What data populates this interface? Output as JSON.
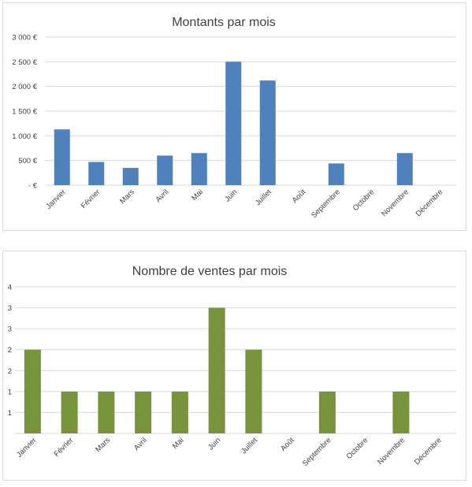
{
  "chart_data": [
    {
      "type": "bar",
      "title": "Montants par mois",
      "categories": [
        "Janvier",
        "Février",
        "Mars",
        "Avril",
        "Mai",
        "Juin",
        "Juillet",
        "Août",
        "Septembre",
        "Octobre",
        "Novembre",
        "Décembre"
      ],
      "values": [
        1130,
        470,
        350,
        600,
        650,
        2500,
        2120,
        0,
        440,
        0,
        650,
        0
      ],
      "ylim": [
        0,
        3000
      ],
      "yticks": [
        0,
        500,
        1000,
        1500,
        2000,
        2500,
        3000
      ],
      "ytick_labels": [
        "- €",
        "500 €",
        "1 000 €",
        "1 500 €",
        "2 000 €",
        "2 500 €",
        "3 000 €"
      ],
      "color": "#4f81bd",
      "grid": true
    },
    {
      "type": "bar",
      "title": "Nombre de ventes par mois",
      "categories": [
        "Janvier",
        "Février",
        "Mars",
        "Avril",
        "Mai",
        "Juin",
        "Juillet",
        "Août",
        "Septembre",
        "Octobre",
        "Novembre",
        "Décembre"
      ],
      "values": [
        2,
        1,
        1,
        1,
        1,
        3,
        2,
        0,
        1,
        0,
        1,
        0
      ],
      "ylim": [
        0,
        3.5
      ],
      "yticks": [
        0.5,
        1,
        1.5,
        2,
        2.5,
        3,
        3.5
      ],
      "ytick_labels": [
        "1",
        "1",
        "2",
        "2",
        "3",
        "3",
        "4"
      ],
      "color": "#77933c",
      "grid": true
    }
  ]
}
